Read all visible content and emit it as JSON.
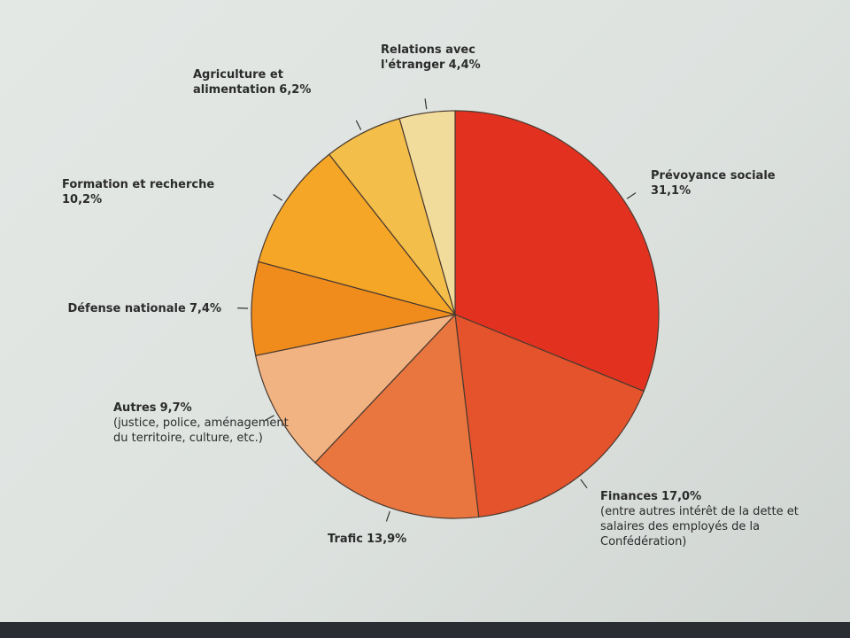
{
  "chart_data": {
    "type": "pie",
    "categories": [
      "Prévoyance sociale",
      "Finances",
      "Trafic",
      "Autres",
      "Défense nationale",
      "Formation et recherche",
      "Agriculture et alimentation",
      "Relations avec l'étranger"
    ],
    "values": [
      31.1,
      17.0,
      13.9,
      9.7,
      7.4,
      10.2,
      6.2,
      4.4
    ],
    "value_labels": [
      "31,1%",
      "17,0%",
      "13,9%",
      "9,7%",
      "7,4%",
      "10,2%",
      "6,2%",
      "4,4%"
    ],
    "notes": [
      null,
      "(entre autres intérêt de la dette et salaires des employés de la Confédération)",
      null,
      "(justice, police, aménagement du territoire, culture, etc.)",
      null,
      null,
      null,
      null
    ],
    "colors": [
      "#e2321f",
      "#e4532b",
      "#e9753f",
      "#f2b383",
      "#f08c1c",
      "#f5a626",
      "#f4be4a",
      "#f2dc9c"
    ]
  }
}
